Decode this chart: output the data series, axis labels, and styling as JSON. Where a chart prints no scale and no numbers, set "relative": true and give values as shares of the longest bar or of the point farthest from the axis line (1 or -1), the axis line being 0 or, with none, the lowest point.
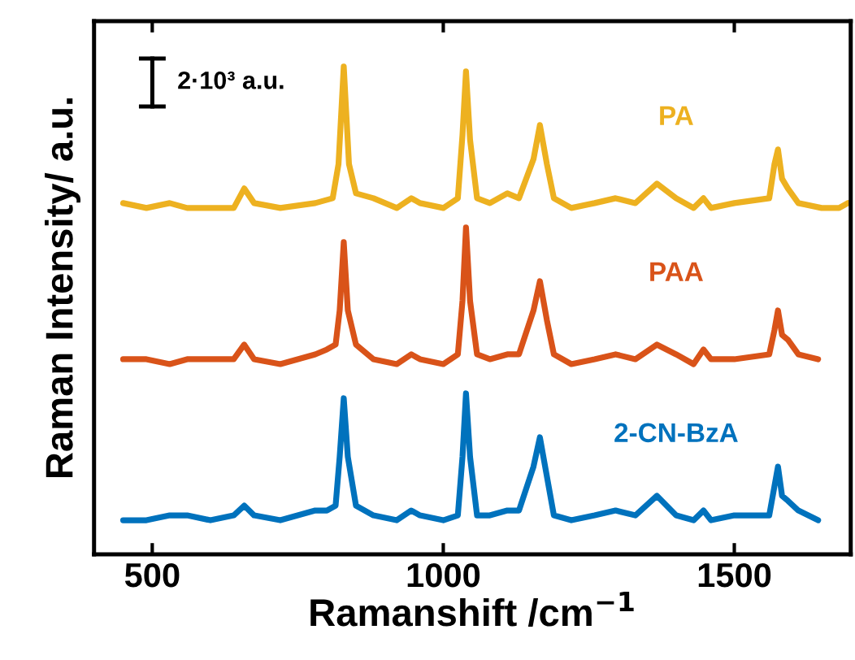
{
  "chart_data": {
    "type": "line",
    "relative": true,
    "xlabel": "Ramanshift /cm$^{−1}$",
    "ylabel": "Raman Intensity/ a.u.",
    "xlim": [
      400,
      1700
    ],
    "xticks": [
      500,
      1000,
      1500
    ],
    "tick_labels": "x",
    "grid": false,
    "legend": false,
    "marker": "none",
    "line_style": "solid",
    "annotations": [
      "2·10³ a.u."
    ],
    "series": [
      {
        "name": "PA",
        "color": "#edb120",
        "x": [
          450,
          490,
          530,
          560,
          600,
          640,
          658,
          675,
          720,
          780,
          810,
          820,
          829,
          838,
          850,
          880,
          920,
          945,
          960,
          1000,
          1025,
          1033,
          1039,
          1046,
          1058,
          1080,
          1110,
          1130,
          1155,
          1166,
          1178,
          1190,
          1220,
          1260,
          1296,
          1330,
          1367,
          1400,
          1430,
          1447,
          1460,
          1500,
          1560,
          1569,
          1575,
          1582,
          1592,
          1610,
          1650,
          1680,
          1695
        ],
        "values": [
          0.72,
          0.71,
          0.72,
          0.71,
          0.71,
          0.71,
          0.75,
          0.72,
          0.71,
          0.72,
          0.73,
          0.8,
          1.0,
          0.8,
          0.74,
          0.73,
          0.71,
          0.73,
          0.72,
          0.71,
          0.73,
          0.86,
          0.99,
          0.85,
          0.73,
          0.72,
          0.74,
          0.73,
          0.81,
          0.88,
          0.8,
          0.73,
          0.71,
          0.72,
          0.73,
          0.72,
          0.76,
          0.73,
          0.71,
          0.73,
          0.71,
          0.72,
          0.73,
          0.8,
          0.83,
          0.77,
          0.75,
          0.72,
          0.71,
          0.71,
          0.72
        ]
      },
      {
        "name": "PAA",
        "color": "#d95319",
        "x": [
          450,
          490,
          530,
          560,
          600,
          640,
          658,
          675,
          720,
          780,
          800,
          815,
          822,
          829,
          836,
          850,
          880,
          920,
          945,
          960,
          1000,
          1025,
          1033,
          1039,
          1046,
          1058,
          1080,
          1110,
          1130,
          1155,
          1166,
          1178,
          1190,
          1220,
          1260,
          1296,
          1330,
          1367,
          1400,
          1430,
          1447,
          1460,
          1500,
          1560,
          1569,
          1575,
          1582,
          1592,
          1610,
          1644
        ],
        "values": [
          0.4,
          0.4,
          0.39,
          0.4,
          0.4,
          0.4,
          0.43,
          0.4,
          0.39,
          0.41,
          0.42,
          0.43,
          0.5,
          0.64,
          0.5,
          0.43,
          0.4,
          0.39,
          0.41,
          0.4,
          0.39,
          0.41,
          0.52,
          0.67,
          0.52,
          0.41,
          0.4,
          0.41,
          0.41,
          0.5,
          0.56,
          0.48,
          0.41,
          0.39,
          0.4,
          0.41,
          0.4,
          0.43,
          0.41,
          0.39,
          0.42,
          0.4,
          0.4,
          0.41,
          0.46,
          0.5,
          0.45,
          0.44,
          0.41,
          0.4
        ]
      },
      {
        "name": "2-CN-BzA",
        "color": "#0072bd",
        "x": [
          450,
          490,
          530,
          560,
          600,
          640,
          658,
          675,
          720,
          780,
          800,
          815,
          822,
          829,
          836,
          850,
          880,
          920,
          945,
          960,
          1000,
          1025,
          1033,
          1039,
          1046,
          1058,
          1080,
          1110,
          1130,
          1155,
          1166,
          1178,
          1190,
          1220,
          1260,
          1296,
          1330,
          1367,
          1400,
          1430,
          1447,
          1460,
          1500,
          1560,
          1569,
          1575,
          1582,
          1592,
          1610,
          1644
        ],
        "values": [
          0.07,
          0.07,
          0.08,
          0.08,
          0.07,
          0.08,
          0.1,
          0.08,
          0.07,
          0.09,
          0.09,
          0.1,
          0.2,
          0.32,
          0.2,
          0.1,
          0.08,
          0.07,
          0.09,
          0.08,
          0.07,
          0.08,
          0.2,
          0.33,
          0.2,
          0.08,
          0.08,
          0.09,
          0.09,
          0.18,
          0.24,
          0.16,
          0.08,
          0.07,
          0.08,
          0.09,
          0.08,
          0.12,
          0.08,
          0.07,
          0.09,
          0.07,
          0.08,
          0.08,
          0.14,
          0.18,
          0.12,
          0.11,
          0.09,
          0.07
        ]
      }
    ]
  }
}
